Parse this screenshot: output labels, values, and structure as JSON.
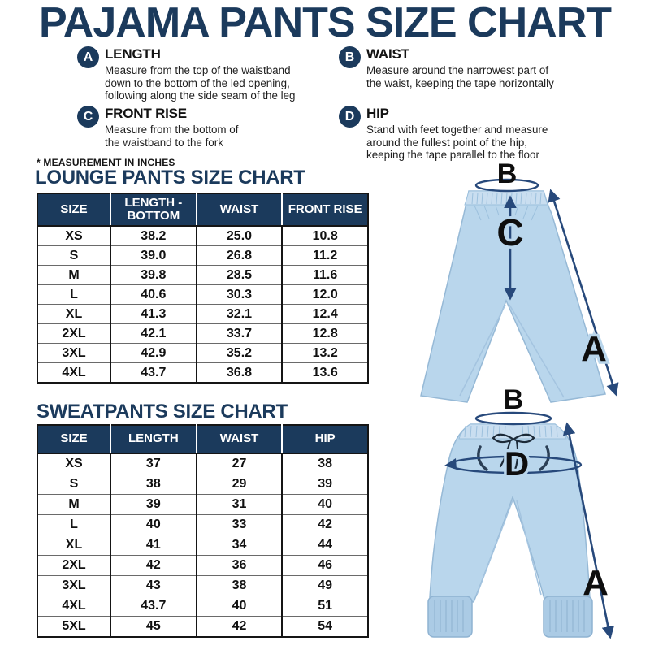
{
  "title": "PAJAMA PANTS SIZE CHART",
  "note": "* MEASUREMENT IN INCHES",
  "definitions": {
    "items": [
      {
        "letter": "A",
        "term": "LENGTH",
        "desc": "Measure from the top of the waistband\ndown to the bottom of the led opening,\nfollowing along the side seam of the leg"
      },
      {
        "letter": "B",
        "term": "WAIST",
        "desc": "Measure around the narrowest part of\nthe waist, keeping the tape horizontally"
      },
      {
        "letter": "C",
        "term": "FRONT RISE",
        "desc": "Measure from the bottom of\nthe waistband to the fork"
      },
      {
        "letter": "D",
        "term": "HIP",
        "desc": "Stand with feet together and measure\naround the fullest point of the hip,\nkeeping the tape parallel to the floor"
      }
    ]
  },
  "chart_data": [
    {
      "type": "table",
      "title": "LOUNGE PANTS SIZE CHART",
      "units": "inches",
      "columns": [
        "SIZE",
        "LENGTH - BOTTOM",
        "WAIST",
        "FRONT RISE"
      ],
      "rows": [
        [
          "XS",
          "38.2",
          "25.0",
          "10.8"
        ],
        [
          "S",
          "39.0",
          "26.8",
          "11.2"
        ],
        [
          "M",
          "39.8",
          "28.5",
          "11.6"
        ],
        [
          "L",
          "40.6",
          "30.3",
          "12.0"
        ],
        [
          "XL",
          "41.3",
          "32.1",
          "12.4"
        ],
        [
          "2XL",
          "42.1",
          "33.7",
          "12.8"
        ],
        [
          "3XL",
          "42.9",
          "35.2",
          "13.2"
        ],
        [
          "4XL",
          "43.7",
          "36.8",
          "13.6"
        ]
      ]
    },
    {
      "type": "table",
      "title": "SWEATPANTS SIZE CHART",
      "units": "inches",
      "columns": [
        "SIZE",
        "LENGTH",
        "WAIST",
        "HIP"
      ],
      "rows": [
        [
          "XS",
          "37",
          "27",
          "38"
        ],
        [
          "S",
          "38",
          "29",
          "39"
        ],
        [
          "M",
          "39",
          "31",
          "40"
        ],
        [
          "L",
          "40",
          "33",
          "42"
        ],
        [
          "XL",
          "41",
          "34",
          "44"
        ],
        [
          "2XL",
          "42",
          "36",
          "46"
        ],
        [
          "3XL",
          "43",
          "38",
          "49"
        ],
        [
          "4XL",
          "43.7",
          "40",
          "51"
        ],
        [
          "5XL",
          "45",
          "42",
          "54"
        ]
      ]
    }
  ],
  "illustrations": {
    "lounge": {
      "labels": {
        "waist": "B",
        "front_rise": "C",
        "length": "A"
      }
    },
    "sweat": {
      "labels": {
        "waist": "B",
        "hip": "D",
        "length": "A"
      }
    }
  },
  "colors": {
    "navy": "#1b3a5c",
    "arrow": "#27497b",
    "pants": "#b9d6ec"
  }
}
